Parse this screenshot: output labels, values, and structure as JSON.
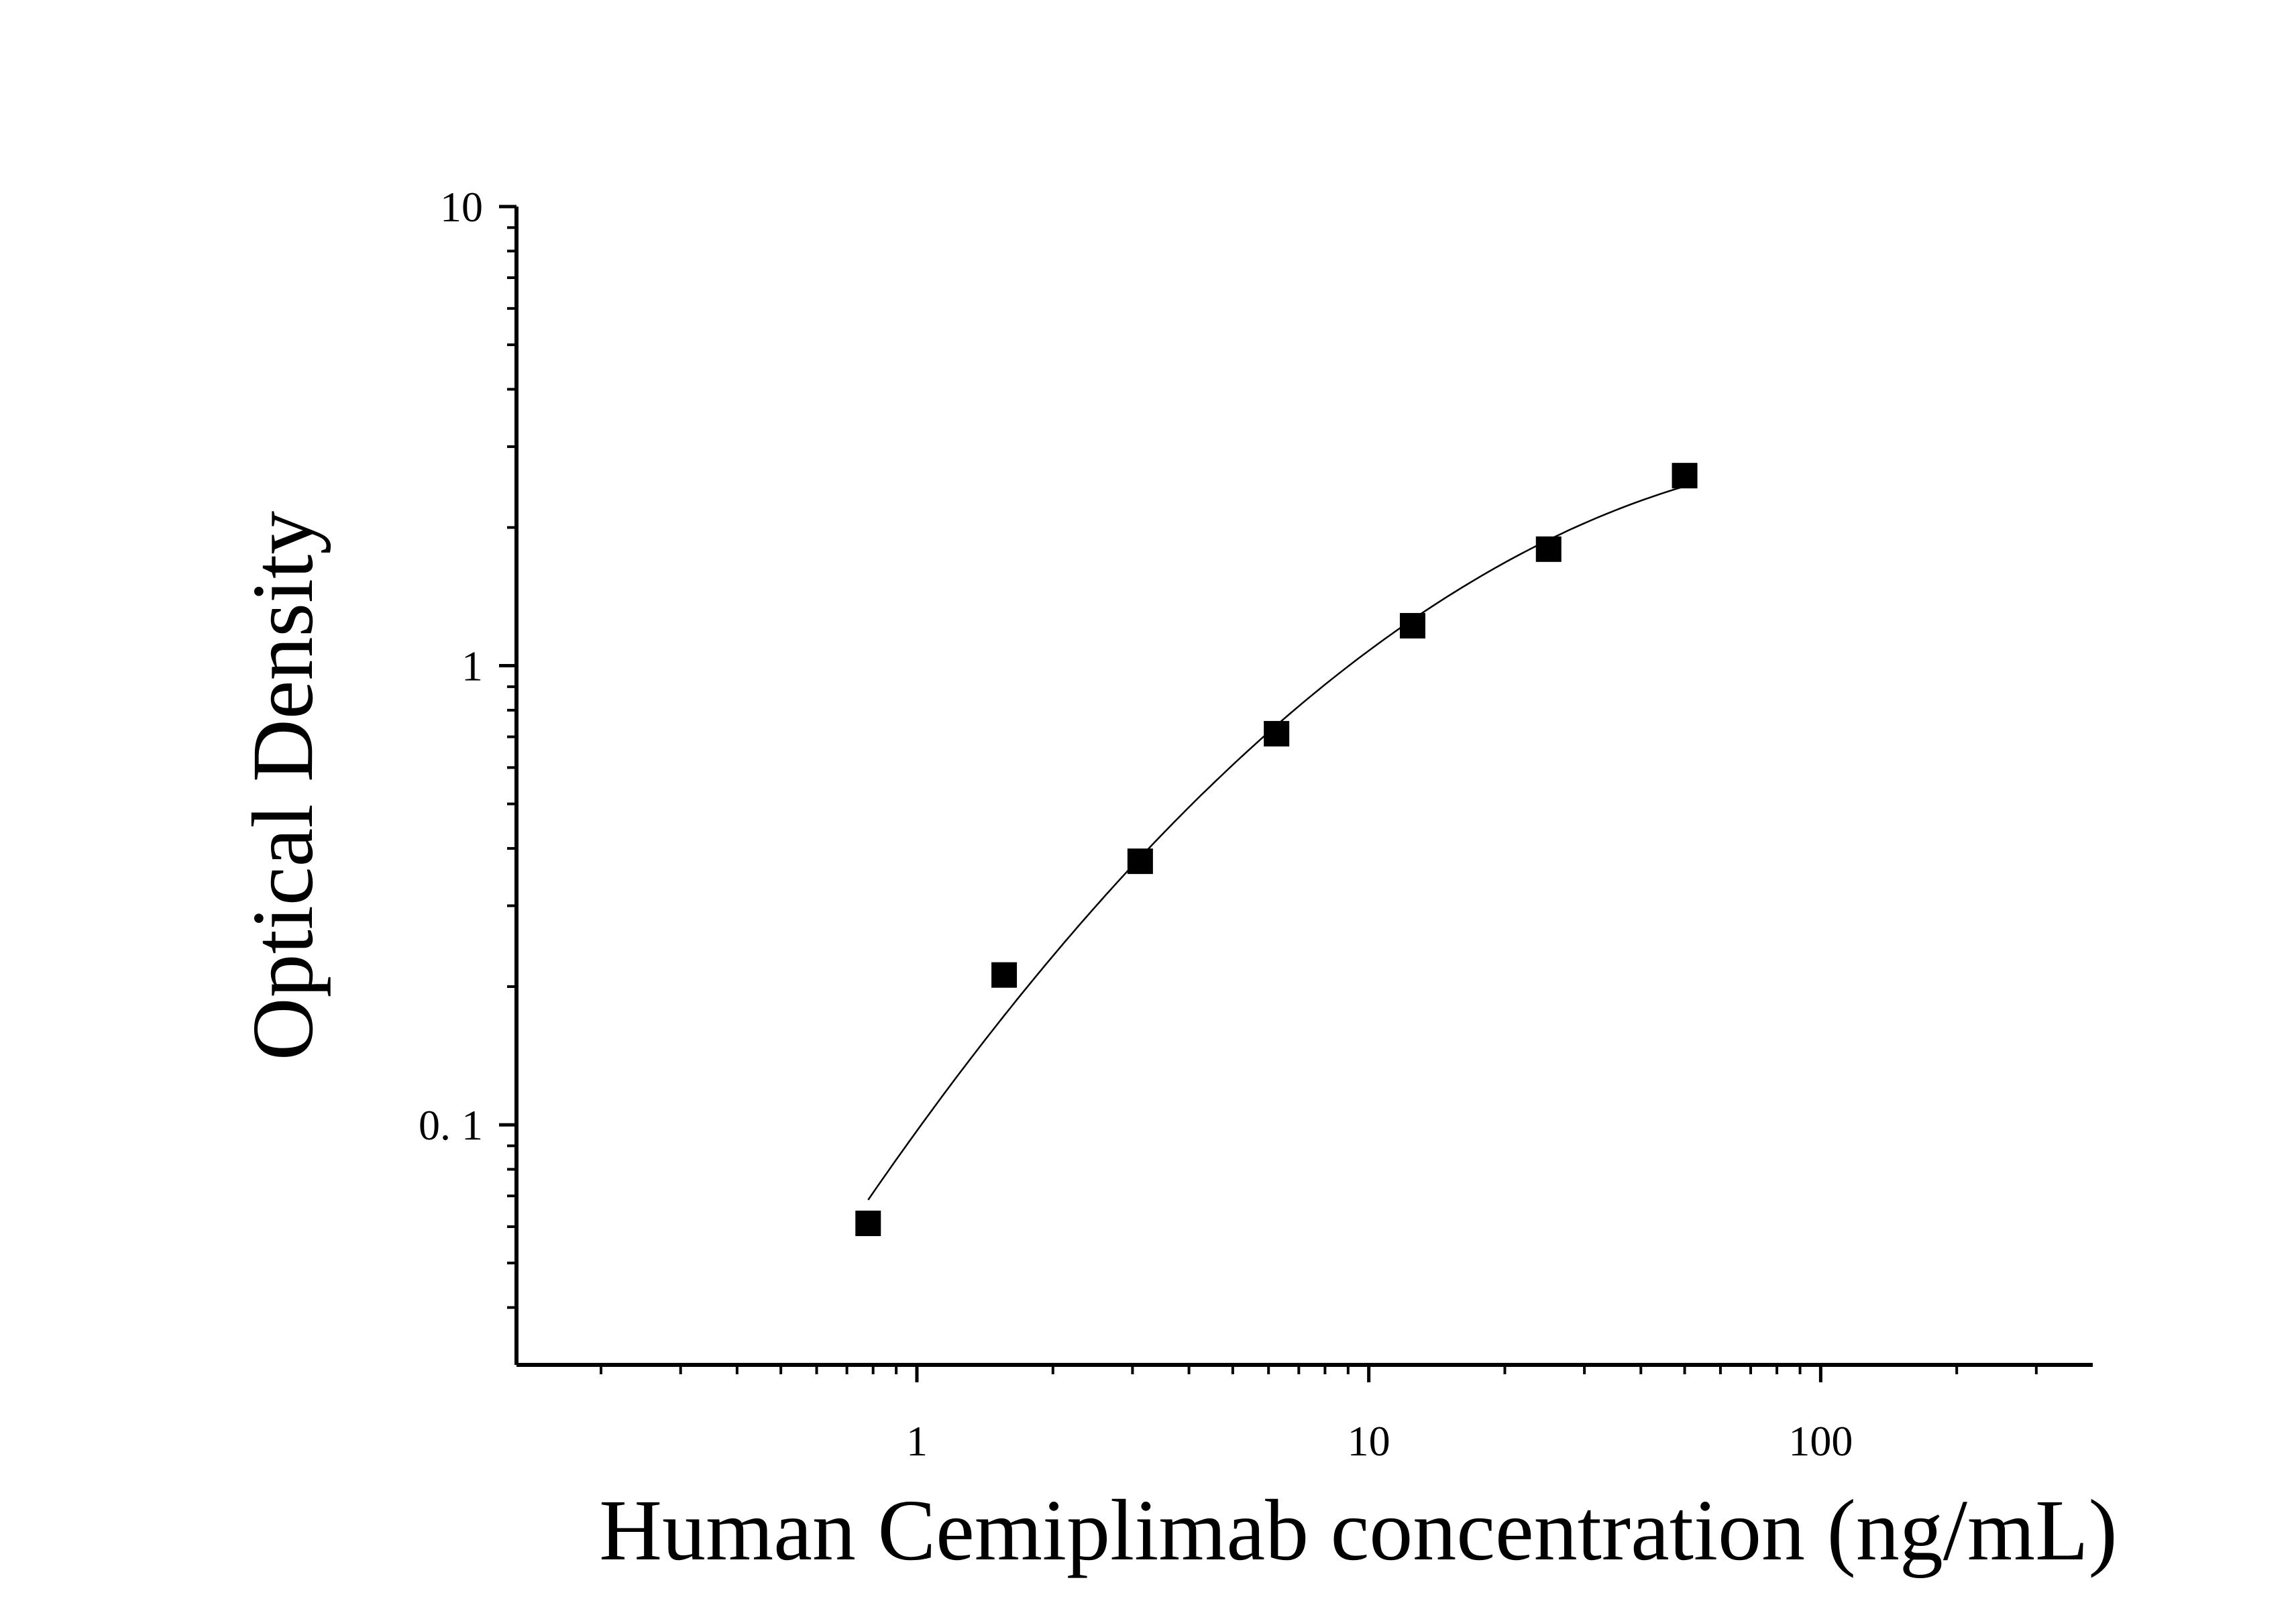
{
  "chart_data": {
    "type": "scatter",
    "title": "",
    "xlabel": "Human Cemiplimab concentration (ng/mL)",
    "ylabel": "Optical Density",
    "x_scale": "log",
    "y_scale": "log",
    "xlim": [
      0.13,
      400
    ],
    "ylim": [
      0.03,
      10
    ],
    "x_ticks": [
      {
        "value": 1,
        "label": "1"
      },
      {
        "value": 10,
        "label": "10"
      },
      {
        "value": 100,
        "label": "100"
      }
    ],
    "y_ticks": [
      {
        "value": 0.1,
        "label": "0. 1"
      },
      {
        "value": 1,
        "label": "1"
      },
      {
        "value": 10,
        "label": "10"
      }
    ],
    "grid": false,
    "legend": "none",
    "marker": "square",
    "marker_color": "#000000",
    "line_color": "#000000",
    "fit_line": true,
    "series": [
      {
        "x": [
          0.78,
          1.56,
          3.12,
          6.25,
          12.5,
          25,
          50
        ],
        "y": [
          0.061,
          0.212,
          0.375,
          0.711,
          1.222,
          1.794,
          2.594
        ]
      }
    ]
  }
}
